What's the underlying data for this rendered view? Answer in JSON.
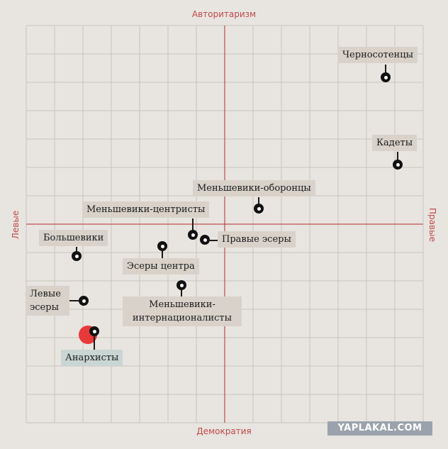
{
  "axes": {
    "top": "Авторитаризм",
    "bottom": "Демократия",
    "left": "Левые",
    "right": "Правые"
  },
  "parties": [
    {
      "key": "chernosotentsy",
      "label": "Черносотенцы"
    },
    {
      "key": "kadety",
      "label": "Кадеты"
    },
    {
      "key": "men_oborontsy",
      "label": "Меньшевики-оборонцы"
    },
    {
      "key": "men_tsentristy",
      "label": "Меньшевики-центристы"
    },
    {
      "key": "pravye_esery",
      "label": "Правые эсеры"
    },
    {
      "key": "bolsheviki",
      "label": "Большевики"
    },
    {
      "key": "esery_tsentra",
      "label": "Эсеры центра"
    },
    {
      "key": "levye_esery_1",
      "label": "Левые"
    },
    {
      "key": "levye_esery_2",
      "label": "эсеры"
    },
    {
      "key": "men_internats_1",
      "label": "Меньшевики-"
    },
    {
      "key": "men_internats_2",
      "label": "интернационалисты"
    },
    {
      "key": "anarkhisty",
      "label": "Анархисты",
      "highlight": true
    }
  ],
  "colors": {
    "background": "#e8e4e0",
    "grid": "#c9c3bd",
    "axis": "#b03030",
    "label_bg": "#d8d2cb",
    "highlight_bg": "#c9d6d4",
    "anarchist_red": "#e8393a"
  },
  "watermark": "YAPLAKAL.COM"
}
